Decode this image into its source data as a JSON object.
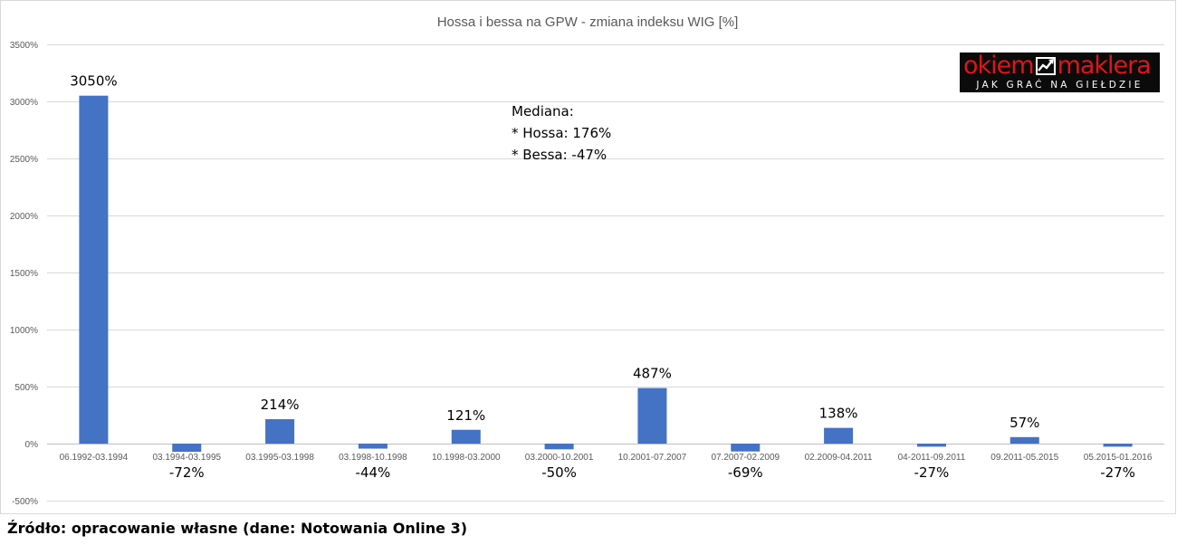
{
  "chart_data": {
    "type": "bar",
    "title": "Hossa i bessa na GPW -  zmiana indeksu WIG [%]",
    "xlabel": "",
    "ylabel": "",
    "categories": [
      "06.1992-03.1994",
      "03.1994-03.1995",
      "03.1995-03.1998",
      "03.1998-10.1998",
      "10.1998-03.2000",
      "03.2000-10.2001",
      "10.2001-07.2007",
      "07.2007-02.2009",
      "02.2009-04.2011",
      "04-2011-09.2011",
      "09.2011-05.2015",
      "05.2015-01.2016"
    ],
    "values": [
      3050,
      -72,
      214,
      -44,
      121,
      -50,
      487,
      -69,
      138,
      -27,
      57,
      -27
    ],
    "data_labels": [
      "3050%",
      "-72%",
      "214%",
      "-44%",
      "121%",
      "-50%",
      "487%",
      "-69%",
      "138%",
      "-27%",
      "57%",
      "-27%"
    ],
    "ylim": [
      -500,
      3500
    ],
    "yticks": [
      -500,
      0,
      500,
      1000,
      1500,
      2000,
      2500,
      3000,
      3500
    ],
    "ytick_labels": [
      "-500%",
      "0%",
      "500%",
      "1000%",
      "1500%",
      "2000%",
      "2500%",
      "3000%",
      "3500%"
    ],
    "grid": true,
    "legend": "none",
    "bar_color": "#4472c4",
    "annotation_lines": [
      "Mediana:",
      "* Hossa: 176%",
      "* Bessa: -47%"
    ]
  },
  "logo": {
    "word1": "okiem",
    "word2": "maklera",
    "tagline": "JAK GRAĆ NA GIEŁDZIE",
    "mark_icon": "chart-arrow-icon",
    "text_color": "#e0141b",
    "background": "#0b0b0b"
  },
  "source": "Źródło: opracowanie własne (dane: Notowania Online 3)"
}
